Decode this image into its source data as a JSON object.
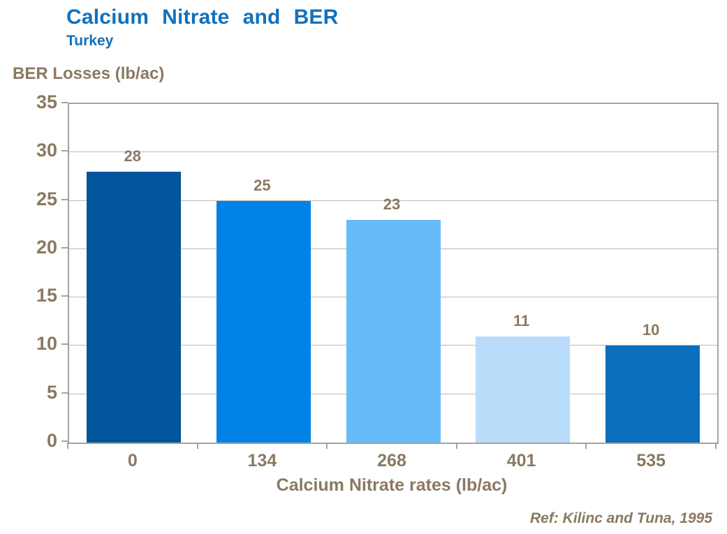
{
  "header": {
    "title": "Calcium Nitrate and BER",
    "subtitle": "Turkey"
  },
  "chart_data": {
    "type": "bar",
    "title": "Calcium Nitrate and BER",
    "subtitle": "Turkey",
    "xlabel": "Calcium Nitrate rates (lb/ac)",
    "ylabel": "BER Losses (lb/ac)",
    "categories": [
      "0",
      "134",
      "268",
      "401",
      "535"
    ],
    "values": [
      28,
      25,
      23,
      11,
      10
    ],
    "value_labels": [
      "28",
      "25",
      "23",
      "11",
      "10"
    ],
    "bar_colors": [
      "#00559B",
      "#0082E6",
      "#66BBF9",
      "#B9DCFB",
      "#0A6EBD"
    ],
    "ylim": [
      0,
      35
    ],
    "yticks": [
      0,
      5,
      10,
      15,
      20,
      25,
      30,
      35
    ],
    "grid": true,
    "legend": false
  },
  "footer": {
    "reference": "Ref: Kilinc and Tuna, 1995"
  },
  "colors": {
    "title_blue": "#1071BF",
    "axis_text_brown": "#8A7962",
    "frame": "#A9A19A",
    "gridline": "#BFB8B1",
    "background": "#FFFFFF"
  }
}
